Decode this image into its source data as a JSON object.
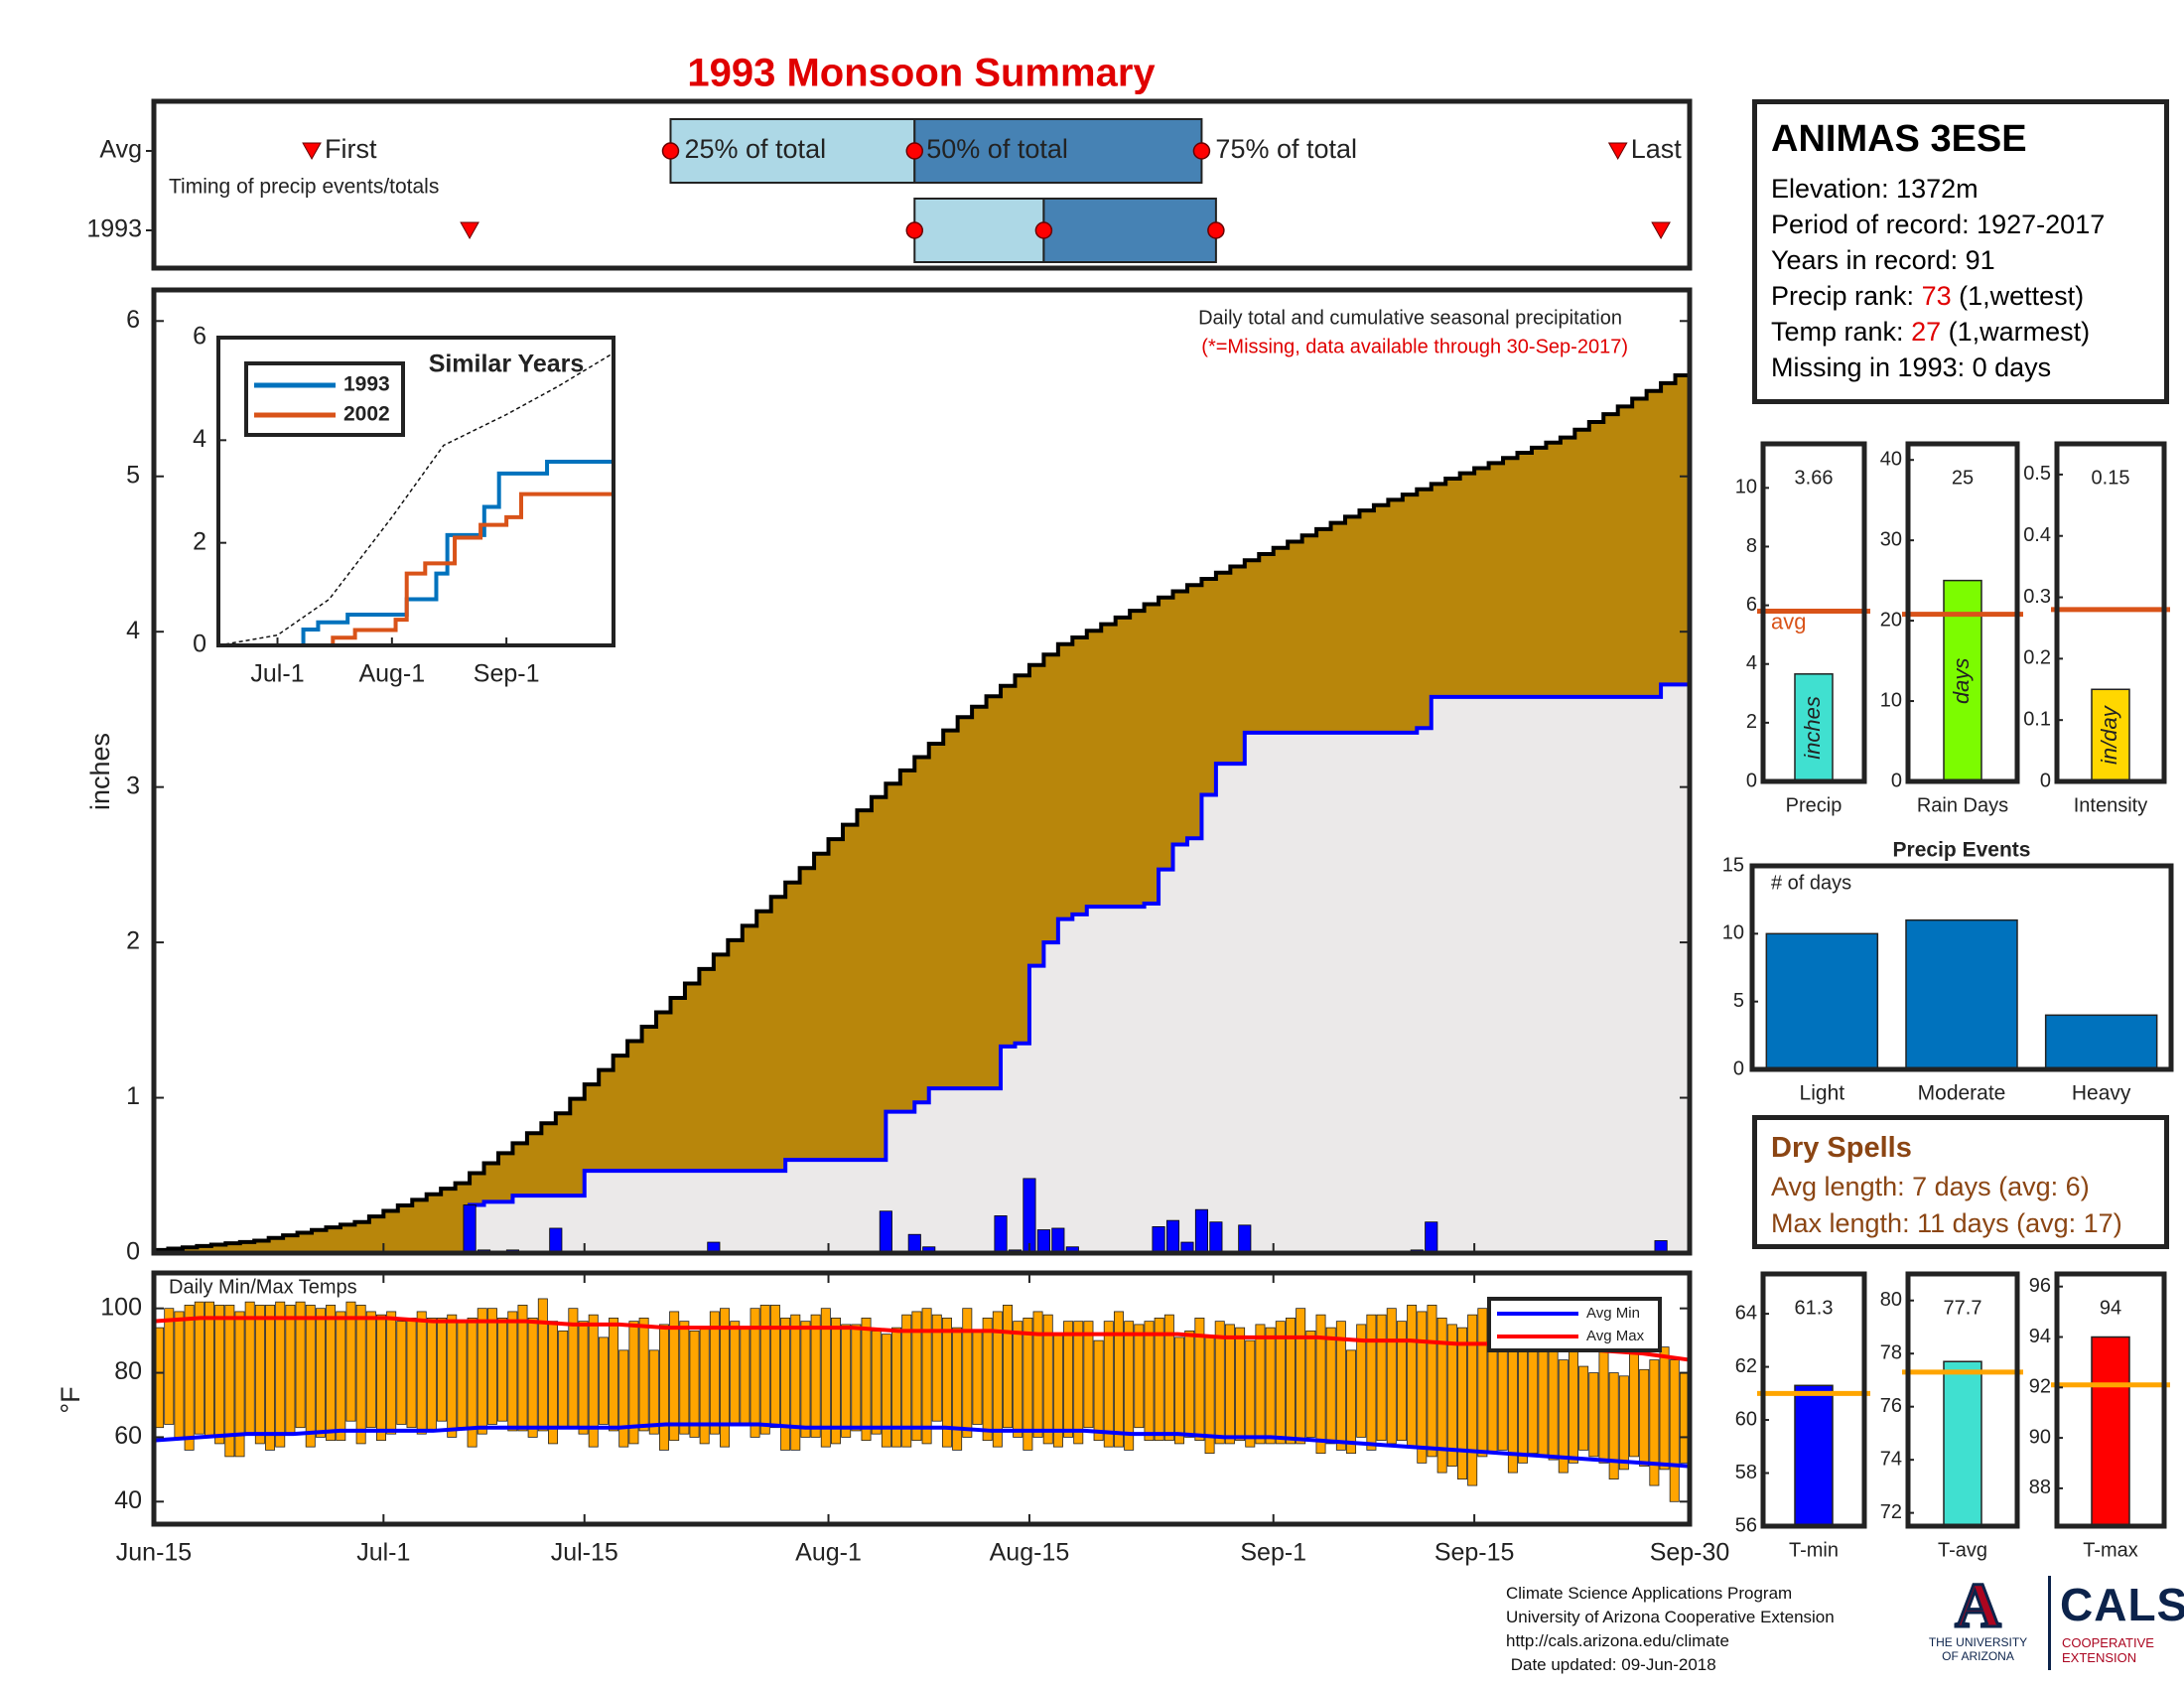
{
  "title": "1993 Monsoon Summary",
  "colors": {
    "title": "#e00000",
    "precip_fill": "#b8860b",
    "obs_fill": "#ebe9e9",
    "obs_line": "#0000ff",
    "daily_bar": "#0000ff",
    "temp_bar": "#ffa500",
    "avg_min": "#0000ff",
    "avg_max": "#ff0000",
    "avg_line_small": "#d95319",
    "temp_avg_line": "#ffa500",
    "timing_light": "#add8e6",
    "timing_dark": "#4682b4",
    "series_1993": "#0072bd",
    "series_2002": "#d95319",
    "precip_bar": "#40e0d0",
    "raindays_bar": "#7cfc00",
    "intensity_bar": "#ffd700",
    "events_bar": "#0072bd",
    "tmin_bar": "#0000ff",
    "tavg_bar": "#40e0d0",
    "tmax_bar": "#ff0000"
  },
  "timing": {
    "row_avg_label": "Avg",
    "row_year_label": "1993",
    "note": "Timing of precip events/totals",
    "first_label": "First",
    "last_label": "Last",
    "p25_label": "25% of total",
    "p50_label": "50% of total",
    "p75_label": "75% of total",
    "avg": {
      "first": "2002-06-26",
      "p25": "2002-07-21",
      "p50": "2002-08-07",
      "p75": "2002-08-27",
      "last": "2002-09-25"
    },
    "year": {
      "first": "2002-07-07",
      "p25": "2002-08-07",
      "p50": "2002-08-16",
      "p75": "2002-08-28",
      "last": "2002-09-28"
    }
  },
  "main_chart": {
    "ylabel": "inches",
    "ylim": [
      0,
      6.2
    ],
    "yticks": [
      "0",
      "1",
      "2",
      "3",
      "4",
      "5",
      "6"
    ],
    "note_line1": "Daily total and cumulative seasonal precipitation",
    "note_line2": "(*=Missing, data available through 30-Sep-2017)",
    "avg_cumulative_points": [
      [
        "2002-06-15",
        0.02
      ],
      [
        "2002-06-22",
        0.08
      ],
      [
        "2002-06-29",
        0.2
      ],
      [
        "2002-07-06",
        0.45
      ],
      [
        "2002-07-13",
        0.9
      ],
      [
        "2002-07-20",
        1.55
      ],
      [
        "2002-07-27",
        2.2
      ],
      [
        "2002-08-03",
        2.85
      ],
      [
        "2002-08-10",
        3.45
      ],
      [
        "2002-08-17",
        3.92
      ],
      [
        "2002-08-24",
        4.22
      ],
      [
        "2002-08-31",
        4.5
      ],
      [
        "2002-09-07",
        4.78
      ],
      [
        "2002-09-14",
        5.02
      ],
      [
        "2002-09-21",
        5.25
      ],
      [
        "2002-09-30",
        5.7
      ]
    ],
    "observed_cumulative_points": [
      [
        "2002-06-15",
        0
      ],
      [
        "2002-07-07",
        0.31
      ],
      [
        "2002-07-08",
        0.33
      ],
      [
        "2002-07-10",
        0.37
      ],
      [
        "2002-07-15",
        0.53
      ],
      [
        "2002-07-29",
        0.6
      ],
      [
        "2002-08-05",
        0.91
      ],
      [
        "2002-08-07",
        0.97
      ],
      [
        "2002-08-08",
        1.06
      ],
      [
        "2002-08-13",
        1.33
      ],
      [
        "2002-08-14",
        1.35
      ],
      [
        "2002-08-15",
        1.85
      ],
      [
        "2002-08-16",
        2.0
      ],
      [
        "2002-08-17",
        2.15
      ],
      [
        "2002-08-18",
        2.18
      ],
      [
        "2002-08-19",
        2.23
      ],
      [
        "2002-08-23",
        2.25
      ],
      [
        "2002-08-24",
        2.47
      ],
      [
        "2002-08-25",
        2.63
      ],
      [
        "2002-08-26",
        2.67
      ],
      [
        "2002-08-27",
        2.95
      ],
      [
        "2002-08-28",
        3.15
      ],
      [
        "2002-08-30",
        3.35
      ],
      [
        "2002-09-11",
        3.38
      ],
      [
        "2002-09-12",
        3.58
      ],
      [
        "2002-09-28",
        3.66
      ],
      [
        "2002-09-30",
        3.66
      ]
    ],
    "daily_precip": [
      [
        "2002-07-07",
        0.31
      ],
      [
        "2002-07-08",
        0.02
      ],
      [
        "2002-07-10",
        0.02
      ],
      [
        "2002-07-13",
        0.16
      ],
      [
        "2002-07-24",
        0.07
      ],
      [
        "2002-08-05",
        0.27
      ],
      [
        "2002-08-07",
        0.12
      ],
      [
        "2002-08-08",
        0.04
      ],
      [
        "2002-08-13",
        0.24
      ],
      [
        "2002-08-14",
        0.02
      ],
      [
        "2002-08-15",
        0.48
      ],
      [
        "2002-08-16",
        0.15
      ],
      [
        "2002-08-17",
        0.16
      ],
      [
        "2002-08-18",
        0.04
      ],
      [
        "2002-08-24",
        0.17
      ],
      [
        "2002-08-25",
        0.21
      ],
      [
        "2002-08-26",
        0.07
      ],
      [
        "2002-08-27",
        0.28
      ],
      [
        "2002-08-28",
        0.2
      ],
      [
        "2002-08-30",
        0.18
      ],
      [
        "2002-09-11",
        0.02
      ],
      [
        "2002-09-12",
        0.2
      ],
      [
        "2002-09-28",
        0.08
      ]
    ]
  },
  "x_axis": {
    "start": "2002-06-15",
    "end": "2002-09-30",
    "ticks": [
      {
        "date": "2002-06-15",
        "label": "Jun-15"
      },
      {
        "date": "2002-07-01",
        "label": "Jul-1"
      },
      {
        "date": "2002-07-15",
        "label": "Jul-15"
      },
      {
        "date": "2002-08-01",
        "label": "Aug-1"
      },
      {
        "date": "2002-08-15",
        "label": "Aug-15"
      },
      {
        "date": "2002-09-01",
        "label": "Sep-1"
      },
      {
        "date": "2002-09-15",
        "label": "Sep-15"
      },
      {
        "date": "2002-09-30",
        "label": "Sep-30"
      }
    ]
  },
  "inset": {
    "title": "Similar Years",
    "ylim": [
      0,
      6
    ],
    "yticks": [
      "0",
      "2",
      "4",
      "6"
    ],
    "xticks": [
      "Jul-1",
      "Aug-1",
      "Sep-1"
    ],
    "series": [
      {
        "name": "1993",
        "points": [
          [
            "2002-06-15",
            0
          ],
          [
            "2002-07-07",
            0
          ],
          [
            "2002-07-08",
            0.31
          ],
          [
            "2002-07-12",
            0.45
          ],
          [
            "2002-07-20",
            0.6
          ],
          [
            "2002-08-05",
            0.9
          ],
          [
            "2002-08-13",
            1.4
          ],
          [
            "2002-08-16",
            2.15
          ],
          [
            "2002-08-26",
            2.7
          ],
          [
            "2002-08-30",
            3.35
          ],
          [
            "2002-09-12",
            3.58
          ],
          [
            "2002-09-30",
            3.66
          ]
        ]
      },
      {
        "name": "2002",
        "points": [
          [
            "2002-06-15",
            0
          ],
          [
            "2002-07-12",
            0
          ],
          [
            "2002-07-16",
            0.15
          ],
          [
            "2002-07-22",
            0.3
          ],
          [
            "2002-08-02",
            0.5
          ],
          [
            "2002-08-05",
            1.4
          ],
          [
            "2002-08-10",
            1.6
          ],
          [
            "2002-08-18",
            2.1
          ],
          [
            "2002-08-25",
            2.35
          ],
          [
            "2002-09-01",
            2.5
          ],
          [
            "2002-09-05",
            2.95
          ],
          [
            "2002-09-30",
            3.0
          ]
        ]
      }
    ],
    "avg_points": [
      [
        "2002-06-15",
        0
      ],
      [
        "2002-07-01",
        0.2
      ],
      [
        "2002-07-15",
        0.9
      ],
      [
        "2002-08-01",
        2.5
      ],
      [
        "2002-08-15",
        3.9
      ],
      [
        "2002-09-01",
        4.5
      ],
      [
        "2002-09-15",
        5.05
      ],
      [
        "2002-09-30",
        5.7
      ]
    ]
  },
  "temps": {
    "title": "Daily Min/Max Temps",
    "ylabel": "°F",
    "ylim": [
      33,
      111
    ],
    "yticks": [
      "40",
      "60",
      "80",
      "100"
    ],
    "legend": [
      "Avg Min",
      "Avg Max"
    ],
    "max": [
      94,
      100,
      99,
      101,
      102,
      102,
      101,
      101,
      99,
      102,
      101,
      101,
      102,
      101,
      102,
      101,
      100,
      101,
      99,
      102,
      101,
      99,
      98,
      99,
      96,
      97,
      99,
      97,
      97,
      98,
      96,
      97,
      100,
      100,
      97,
      99,
      101,
      97,
      103,
      96,
      93,
      100,
      96,
      98,
      91,
      97,
      87,
      96,
      97,
      87,
      95,
      99,
      96,
      93,
      94,
      99,
      100,
      96,
      94,
      100,
      101,
      101,
      97,
      98,
      96,
      98,
      100,
      97,
      95,
      95,
      97,
      93,
      92,
      94,
      98,
      99,
      100,
      98,
      97,
      94,
      100,
      93,
      97,
      99,
      101,
      96,
      97,
      99,
      98,
      92,
      96,
      96,
      96,
      90,
      96,
      99,
      96,
      95,
      96,
      97,
      98,
      91,
      93,
      97,
      91,
      96,
      95,
      94,
      90,
      95,
      94,
      96,
      97,
      100,
      93,
      98,
      94,
      96,
      87,
      95,
      98,
      98,
      100,
      96,
      101,
      99,
      101,
      97,
      95,
      94,
      98,
      100,
      98,
      96,
      95,
      93,
      92,
      88,
      88,
      84,
      89,
      82,
      80,
      95,
      80,
      79,
      90,
      81,
      84,
      88,
      84,
      80
    ],
    "min": [
      63,
      64,
      60,
      56,
      61,
      60,
      58,
      54,
      54,
      61,
      58,
      56,
      57,
      61,
      63,
      57,
      60,
      59,
      59,
      65,
      58,
      63,
      59,
      61,
      64,
      63,
      61,
      62,
      65,
      60,
      63,
      57,
      61,
      64,
      65,
      62,
      62,
      60,
      62,
      58,
      63,
      63,
      61,
      57,
      64,
      62,
      57,
      58,
      62,
      61,
      56,
      59,
      61,
      60,
      58,
      61,
      57,
      64,
      64,
      60,
      61,
      63,
      56,
      56,
      60,
      60,
      57,
      58,
      60,
      62,
      59,
      61,
      57,
      57,
      57,
      59,
      58,
      65,
      57,
      56,
      60,
      64,
      59,
      57,
      63,
      60,
      56,
      60,
      58,
      57,
      60,
      58,
      63,
      59,
      57,
      57,
      56,
      63,
      59,
      59,
      59,
      58,
      60,
      59,
      55,
      58,
      58,
      59,
      57,
      58,
      58,
      58,
      58,
      58,
      60,
      55,
      58,
      56,
      55,
      60,
      56,
      59,
      58,
      59,
      57,
      52,
      54,
      49,
      51,
      47,
      45,
      54,
      55,
      56,
      49,
      52,
      55,
      54,
      53,
      49,
      52,
      56,
      54,
      52,
      47,
      50,
      54,
      51,
      45,
      50,
      40,
      52
    ],
    "avg_min": [
      59,
      60,
      61,
      61,
      62,
      62,
      62,
      63,
      63,
      63,
      63,
      64,
      64,
      64,
      63,
      63,
      63,
      63,
      62,
      62,
      62,
      61,
      61,
      60,
      60,
      59,
      58,
      57,
      56,
      55,
      54,
      53,
      52,
      51
    ],
    "avg_max": [
      96,
      97,
      97,
      97,
      97,
      97,
      96,
      96,
      96,
      95,
      95,
      94,
      94,
      94,
      94,
      94,
      93,
      93,
      93,
      92,
      92,
      92,
      92,
      91,
      91,
      91,
      90,
      90,
      89,
      89,
      88,
      87,
      86,
      84
    ]
  },
  "info": {
    "station": "ANIMAS 3ESE",
    "elevation": "Elevation: 1372m",
    "period": "Period of record: 1927-2017",
    "years": "Years in record: 91",
    "precip_rank_label": "Precip rank: ",
    "precip_rank_value": "73",
    "precip_rank_note": " (1,wettest)",
    "temp_rank_label": "Temp rank: ",
    "temp_rank_value": "27",
    "temp_rank_note": " (1,warmest)",
    "missing": "Missing in 1993: 0 days"
  },
  "small_bars": [
    {
      "label": "Precip",
      "value": 3.66,
      "display": "3.66",
      "unit": "inches",
      "avg": 5.8,
      "avg_label": "avg",
      "ylim": [
        0,
        11.5
      ],
      "yticks": [
        0,
        2,
        4,
        6,
        8,
        10
      ],
      "color_key": "precip_bar"
    },
    {
      "label": "Rain Days",
      "value": 25,
      "display": "25",
      "unit": "days",
      "avg": 20.8,
      "ylim": [
        0,
        42
      ],
      "yticks": [
        0,
        10,
        20,
        30,
        40
      ],
      "color_key": "raindays_bar"
    },
    {
      "label": "Intensity",
      "value": 0.15,
      "display": "0.15",
      "unit": "in/day",
      "avg": 0.28,
      "ylim": [
        0,
        0.55
      ],
      "yticks": [
        "0",
        "0.1",
        "0.2",
        "0.3",
        "0.4",
        "0.5"
      ],
      "color_key": "intensity_bar"
    }
  ],
  "precip_events": {
    "title": "Precip Events",
    "ylabel": "# of days",
    "ylim": [
      0,
      15
    ],
    "yticks": [
      0,
      5,
      10,
      15
    ],
    "categories": [
      "Light",
      "Moderate",
      "Heavy"
    ],
    "values": [
      10,
      11,
      4
    ]
  },
  "dry_spells": {
    "title": "Dry Spells",
    "avg_length": "Avg length: 7 days (avg: 6)",
    "max_length": "Max length: 11 days (avg: 17)"
  },
  "temp_bars": [
    {
      "label": "T-min",
      "value": 61.3,
      "display": "61.3",
      "avg": 61.0,
      "ylim": [
        56,
        65.5
      ],
      "yticks": [
        56,
        58,
        60,
        62,
        64
      ],
      "color_key": "tmin_bar"
    },
    {
      "label": "T-avg",
      "value": 77.7,
      "display": "77.7",
      "avg": 77.3,
      "ylim": [
        71.5,
        81
      ],
      "yticks": [
        72,
        74,
        76,
        78,
        80
      ],
      "color_key": "tavg_bar"
    },
    {
      "label": "T-max",
      "value": 94,
      "display": "94",
      "avg": 92.1,
      "ylim": [
        86.5,
        96.5
      ],
      "yticks": [
        88,
        90,
        92,
        94,
        96
      ],
      "color_key": "tmax_bar"
    }
  ],
  "footer": {
    "line1": "Climate Science Applications Program",
    "line2": "University of Arizona Cooperative Extension",
    "line3": "http://cals.arizona.edu/climate",
    "line4": " Date updated: 09-Jun-2018"
  },
  "logos": {
    "ua_letter": "A",
    "ua_line1": "THE UNIVERSITY",
    "ua_line2": "OF ARIZONA",
    "cals_name": "CALS",
    "cals_line1": "COOPERATIVE",
    "cals_line2": "EXTENSION"
  }
}
